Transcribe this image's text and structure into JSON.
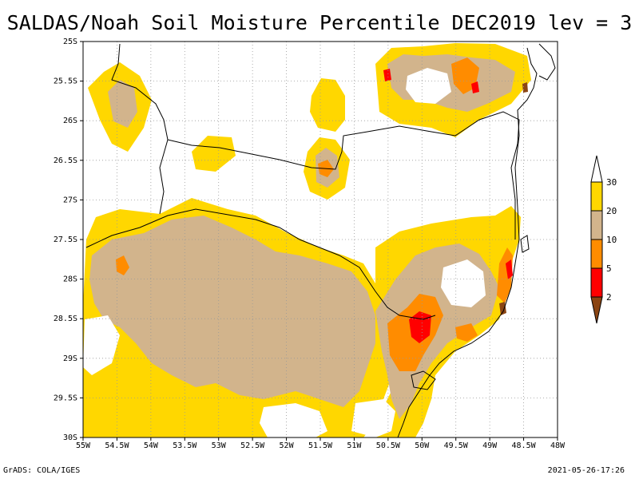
{
  "title": "SALDAS/Noah Soil Moisture Percentile DEC2019 lev = 3",
  "footer": {
    "left": "GrADS: COLA/IGES",
    "right": "2021-05-26-17:26"
  },
  "map": {
    "lon_range": [
      -55,
      -48
    ],
    "lat_range": [
      -30,
      -25
    ],
    "x_ticks": [
      "55W",
      "54.5W",
      "54W",
      "53.5W",
      "53W",
      "52.5W",
      "52W",
      "51.5W",
      "51W",
      "50.5W",
      "50W",
      "49.5W",
      "49W",
      "48.5W",
      "48W"
    ],
    "y_ticks": [
      "25S",
      "25.5S",
      "26S",
      "26.5S",
      "27S",
      "27.5S",
      "28S",
      "28.5S",
      "29S",
      "29.5S",
      "30S"
    ],
    "grid": true
  },
  "legend": {
    "labels": [
      "2",
      "5",
      "10",
      "20",
      "30"
    ],
    "colors": {
      "below_2": "#8B4513",
      "2_5": "#ff0000",
      "5_10": "#ff8c00",
      "10_20": "#d2b48c",
      "20_30": "#ffd700",
      "above_30": "#ffffff"
    }
  },
  "palette": {
    "gold": "#ffd700",
    "tan": "#d2b48c",
    "orange": "#ff8c00",
    "red": "#ff0000",
    "brown": "#8B4513",
    "border": "#000000",
    "gridline": "#999999"
  }
}
